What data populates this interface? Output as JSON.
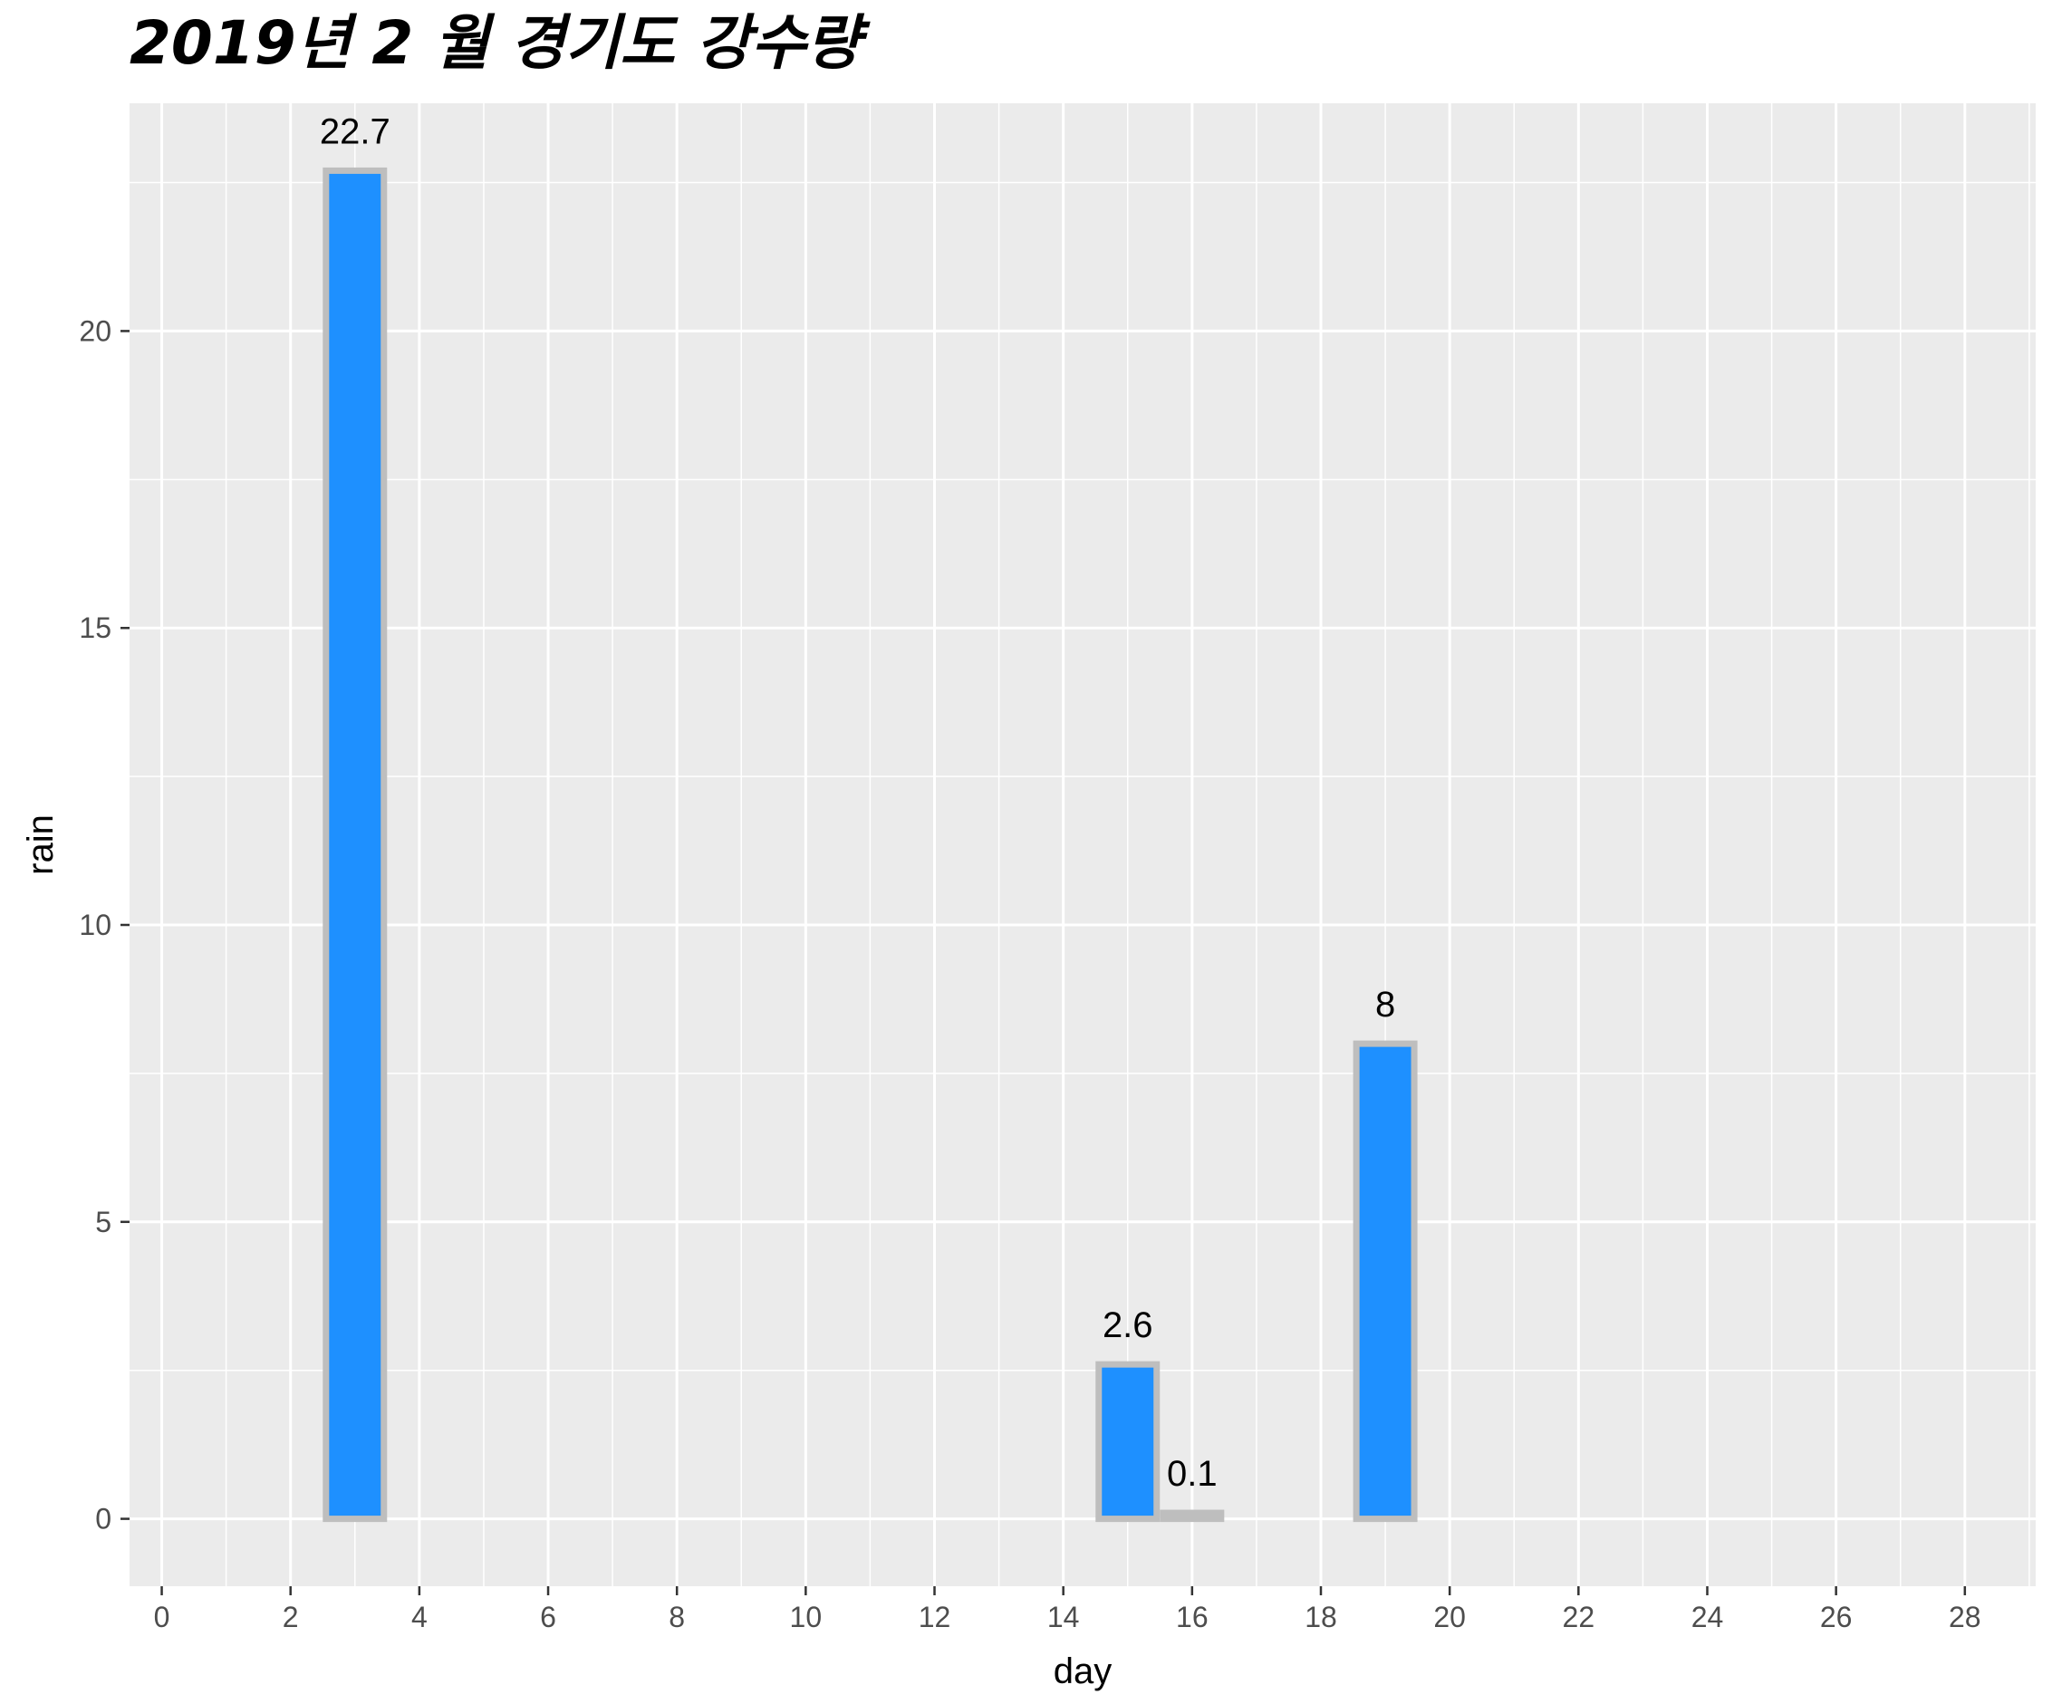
{
  "chart_data": {
    "type": "bar",
    "title": "2019년 2 월 경기도 강수량",
    "xlabel": "day",
    "ylabel": "rain",
    "x": [
      3,
      15,
      16,
      19
    ],
    "values": [
      22.7,
      2.6,
      0.1,
      8
    ],
    "data_labels": [
      "22.7",
      "2.6",
      "0.1",
      "8"
    ],
    "xlim": [
      -0.5,
      29.1
    ],
    "ylim": [
      -1.135,
      23.835
    ],
    "x_ticks": [
      0,
      2,
      4,
      6,
      8,
      10,
      12,
      14,
      16,
      18,
      20,
      22,
      24,
      26,
      28
    ],
    "x_tick_labels": [
      "0",
      "2",
      "4",
      "6",
      "8",
      "10",
      "12",
      "14",
      "16",
      "18",
      "20",
      "22",
      "24",
      "26",
      "28"
    ],
    "y_ticks": [
      0,
      5,
      10,
      15,
      20
    ],
    "y_tick_labels": [
      "0",
      "5",
      "10",
      "15",
      "20"
    ],
    "bar_width_days": 0.9,
    "bar_fill_color": "#1E90FF",
    "bar_border_color": "#BEBEBE",
    "panel_background": "#EBEBEB",
    "grid": true,
    "legend": "none"
  }
}
